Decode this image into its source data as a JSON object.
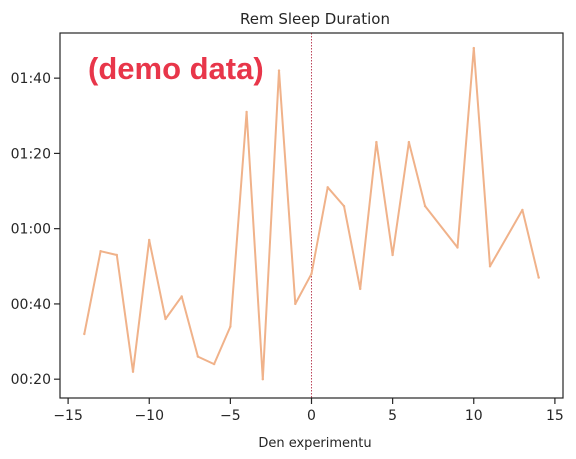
{
  "chart_data": {
    "type": "line",
    "title": "Rem Sleep Duration",
    "xlabel": "Den experimentu",
    "ylabel": "",
    "xlim": [
      -15.5,
      15.5
    ],
    "ylim": [
      "00:15",
      "01:52"
    ],
    "x_ticks": [
      "−15",
      "−10",
      "−5",
      "0",
      "5",
      "10",
      "15"
    ],
    "y_ticks": [
      "00:20",
      "00:40",
      "01:00",
      "01:20",
      "01:40"
    ],
    "grid": false,
    "reference_line": {
      "x": 0,
      "color": "#b5334a",
      "style": "dotted"
    },
    "series": [
      {
        "color": "#f0b28a",
        "x": [
          -14,
          -13,
          -12,
          -11,
          -10,
          -9,
          -8,
          -7,
          -6,
          -5,
          -4,
          -3,
          -2,
          -1,
          0,
          1,
          2,
          3,
          4,
          5,
          6,
          7,
          9,
          10,
          11,
          13,
          14
        ],
        "y": [
          "00:32",
          "00:54",
          "00:53",
          "00:22",
          "00:57",
          "00:36",
          "00:42",
          "00:26",
          "00:24",
          "00:34",
          "01:31",
          "00:20",
          "01:42",
          "00:40",
          "00:48",
          "01:11",
          "01:06",
          "00:44",
          "01:23",
          "00:53",
          "01:23",
          "01:06",
          "00:55",
          "01:48",
          "00:50",
          "01:05",
          "00:47"
        ]
      }
    ]
  },
  "watermark": {
    "text": "(demo data)",
    "color": "#e8364a"
  }
}
